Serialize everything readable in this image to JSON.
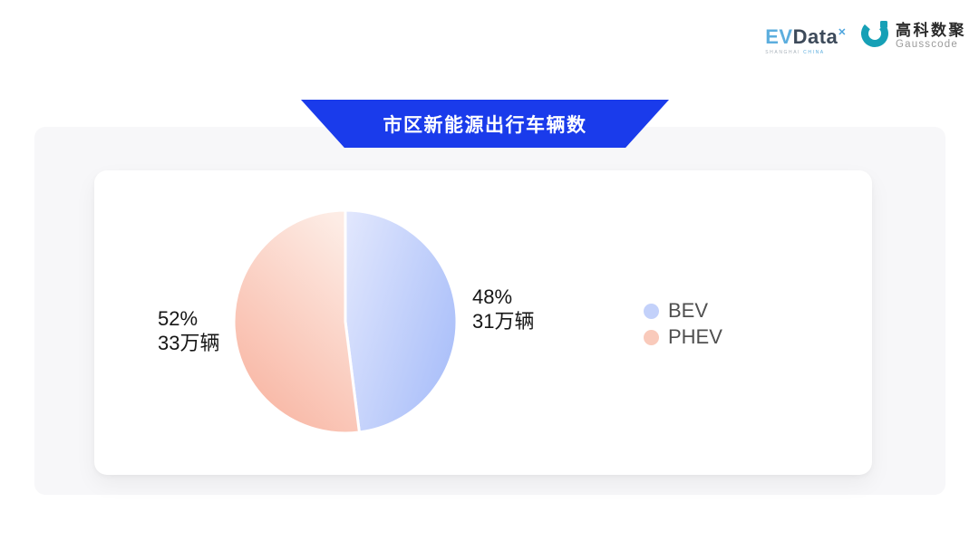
{
  "header": {
    "evdata_logo": {
      "ev": "EV",
      "data": "Data",
      "sup": "✕",
      "subtext_left": "SHANGHAI",
      "subtext_right": "CHINA"
    },
    "gausscode_logo": {
      "cn": "高科数聚",
      "en": "Gausscode",
      "icon_color": "#16a0b6"
    }
  },
  "banner": {
    "title": "市区新能源出行车辆数",
    "color": "#1a3beb"
  },
  "chart_data": {
    "type": "pie",
    "title": "市区新能源出行车辆数",
    "unit": "万辆",
    "start_angle_deg": 0,
    "direction": "clockwise",
    "radius_px": 123,
    "legend_position": "right",
    "slices": [
      {
        "label": "BEV",
        "percent": 48,
        "value": 31,
        "percent_label": "48%",
        "value_label": "31万辆",
        "color_start": "#e0e6fd",
        "color_end": "#aabff9"
      },
      {
        "label": "PHEV",
        "percent": 52,
        "value": 33,
        "percent_label": "52%",
        "value_label": "33万辆",
        "color_start": "#fdece5",
        "color_end": "#f8b3a0"
      }
    ]
  },
  "legend": {
    "items": [
      {
        "label": "BEV",
        "dot_color": "#c3d1fa"
      },
      {
        "label": "PHEV",
        "dot_color": "#f9cabb"
      }
    ]
  }
}
